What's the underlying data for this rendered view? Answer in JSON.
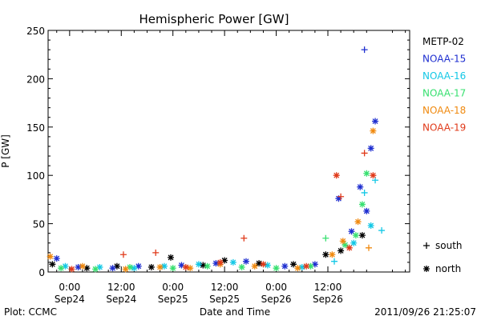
{
  "chart_data": {
    "type": "scatter",
    "title": "Hemispheric Power [GW]",
    "xlabel": "Date and Time",
    "ylabel": "P [GW]",
    "ylim": [
      0,
      250
    ],
    "y_ticks": [
      0,
      50,
      100,
      150,
      200,
      250
    ],
    "xlim_hours": [
      -5,
      79
    ],
    "x_ticks": [
      {
        "hour": 0,
        "time": "0:00",
        "date": "Sep24"
      },
      {
        "hour": 12,
        "time": "12:00",
        "date": "Sep24"
      },
      {
        "hour": 24,
        "time": "0:00",
        "date": "Sep25"
      },
      {
        "hour": 36,
        "time": "12:00",
        "date": "Sep25"
      },
      {
        "hour": 48,
        "time": "0:00",
        "date": "Sep26"
      },
      {
        "hour": 60,
        "time": "12:00",
        "date": "Sep26"
      }
    ],
    "x_tick_unit": "hour",
    "legend_position": "right",
    "marker_legend": [
      {
        "symbol": "+",
        "label": "south"
      },
      {
        "symbol": "*",
        "label": "north"
      }
    ],
    "series": [
      {
        "name": "METP-02",
        "color": "#000000",
        "points": [
          {
            "x": -4.0,
            "y": 8,
            "hemisphere": "north"
          },
          {
            "x": 4.0,
            "y": 4,
            "hemisphere": "north"
          },
          {
            "x": 11.0,
            "y": 6,
            "hemisphere": "north"
          },
          {
            "x": 19.0,
            "y": 5,
            "hemisphere": "north"
          },
          {
            "x": 23.5,
            "y": 15,
            "hemisphere": "north"
          },
          {
            "x": 31.0,
            "y": 7,
            "hemisphere": "north"
          },
          {
            "x": 36.0,
            "y": 12,
            "hemisphere": "north"
          },
          {
            "x": 44.0,
            "y": 9,
            "hemisphere": "north"
          },
          {
            "x": 52.0,
            "y": 8,
            "hemisphere": "north"
          },
          {
            "x": 59.5,
            "y": 18,
            "hemisphere": "north"
          },
          {
            "x": 63.0,
            "y": 22,
            "hemisphere": "north"
          },
          {
            "x": 68.0,
            "y": 38,
            "hemisphere": "north"
          }
        ]
      },
      {
        "name": "NOAA-15",
        "color": "#1f2fd0",
        "points": [
          {
            "x": -3.0,
            "y": 14,
            "hemisphere": "north"
          },
          {
            "x": 2.0,
            "y": 5,
            "hemisphere": "north"
          },
          {
            "x": 10.0,
            "y": 4,
            "hemisphere": "north"
          },
          {
            "x": 16.0,
            "y": 6,
            "hemisphere": "north"
          },
          {
            "x": 26.0,
            "y": 7,
            "hemisphere": "north"
          },
          {
            "x": 34.0,
            "y": 9,
            "hemisphere": "north"
          },
          {
            "x": 41.0,
            "y": 11,
            "hemisphere": "north"
          },
          {
            "x": 50.0,
            "y": 6,
            "hemisphere": "north"
          },
          {
            "x": 57.0,
            "y": 8,
            "hemisphere": "north"
          },
          {
            "x": 62.5,
            "y": 76,
            "hemisphere": "north"
          },
          {
            "x": 65.5,
            "y": 42,
            "hemisphere": "north"
          },
          {
            "x": 67.5,
            "y": 88,
            "hemisphere": "north"
          },
          {
            "x": 68.5,
            "y": 230,
            "hemisphere": "south"
          },
          {
            "x": 69.0,
            "y": 63,
            "hemisphere": "north"
          },
          {
            "x": 70.0,
            "y": 128,
            "hemisphere": "north"
          },
          {
            "x": 71.0,
            "y": 156,
            "hemisphere": "north"
          }
        ]
      },
      {
        "name": "NOAA-16",
        "color": "#14c8e6",
        "points": [
          {
            "x": -1.0,
            "y": 6,
            "hemisphere": "north"
          },
          {
            "x": 7.0,
            "y": 5,
            "hemisphere": "north"
          },
          {
            "x": 15.0,
            "y": 4,
            "hemisphere": "north"
          },
          {
            "x": 22.0,
            "y": 6,
            "hemisphere": "north"
          },
          {
            "x": 30.0,
            "y": 8,
            "hemisphere": "north"
          },
          {
            "x": 38.0,
            "y": 10,
            "hemisphere": "north"
          },
          {
            "x": 46.0,
            "y": 7,
            "hemisphere": "north"
          },
          {
            "x": 54.0,
            "y": 5,
            "hemisphere": "north"
          },
          {
            "x": 61.5,
            "y": 11,
            "hemisphere": "south"
          },
          {
            "x": 66.0,
            "y": 30,
            "hemisphere": "north"
          },
          {
            "x": 68.5,
            "y": 82,
            "hemisphere": "south"
          },
          {
            "x": 70.0,
            "y": 48,
            "hemisphere": "north"
          },
          {
            "x": 71.0,
            "y": 95,
            "hemisphere": "south"
          },
          {
            "x": 72.5,
            "y": 43,
            "hemisphere": "south"
          }
        ]
      },
      {
        "name": "NOAA-17",
        "color": "#38e070",
        "points": [
          {
            "x": -2.0,
            "y": 4,
            "hemisphere": "north"
          },
          {
            "x": 6.0,
            "y": 3,
            "hemisphere": "north"
          },
          {
            "x": 14.0,
            "y": 5,
            "hemisphere": "north"
          },
          {
            "x": 24.0,
            "y": 4,
            "hemisphere": "north"
          },
          {
            "x": 32.0,
            "y": 6,
            "hemisphere": "north"
          },
          {
            "x": 40.0,
            "y": 5,
            "hemisphere": "north"
          },
          {
            "x": 48.0,
            "y": 4,
            "hemisphere": "north"
          },
          {
            "x": 56.0,
            "y": 6,
            "hemisphere": "north"
          },
          {
            "x": 59.5,
            "y": 35,
            "hemisphere": "south"
          },
          {
            "x": 64.0,
            "y": 28,
            "hemisphere": "north"
          },
          {
            "x": 66.5,
            "y": 38,
            "hemisphere": "north"
          },
          {
            "x": 68.0,
            "y": 70,
            "hemisphere": "north"
          },
          {
            "x": 69.0,
            "y": 102,
            "hemisphere": "north"
          }
        ]
      },
      {
        "name": "NOAA-18",
        "color": "#f08a10",
        "points": [
          {
            "x": -4.5,
            "y": 16,
            "hemisphere": "north"
          },
          {
            "x": 3.0,
            "y": 6,
            "hemisphere": "north"
          },
          {
            "x": 13.0,
            "y": 3,
            "hemisphere": "north"
          },
          {
            "x": 21.0,
            "y": 5,
            "hemisphere": "north"
          },
          {
            "x": 28.0,
            "y": 4,
            "hemisphere": "north"
          },
          {
            "x": 35.0,
            "y": 8,
            "hemisphere": "north"
          },
          {
            "x": 43.0,
            "y": 6,
            "hemisphere": "north"
          },
          {
            "x": 53.0,
            "y": 4,
            "hemisphere": "north"
          },
          {
            "x": 61.0,
            "y": 18,
            "hemisphere": "north"
          },
          {
            "x": 63.5,
            "y": 32,
            "hemisphere": "north"
          },
          {
            "x": 67.0,
            "y": 52,
            "hemisphere": "north"
          },
          {
            "x": 69.5,
            "y": 25,
            "hemisphere": "south"
          },
          {
            "x": 70.5,
            "y": 146,
            "hemisphere": "north"
          }
        ]
      },
      {
        "name": "NOAA-19",
        "color": "#e03a1a",
        "points": [
          {
            "x": 0.5,
            "y": 3,
            "hemisphere": "north"
          },
          {
            "x": 12.5,
            "y": 18,
            "hemisphere": "south"
          },
          {
            "x": 20.0,
            "y": 20,
            "hemisphere": "south"
          },
          {
            "x": 27.0,
            "y": 5,
            "hemisphere": "north"
          },
          {
            "x": 35.0,
            "y": 10,
            "hemisphere": "north"
          },
          {
            "x": 40.5,
            "y": 35,
            "hemisphere": "south"
          },
          {
            "x": 45.0,
            "y": 8,
            "hemisphere": "north"
          },
          {
            "x": 55.0,
            "y": 6,
            "hemisphere": "north"
          },
          {
            "x": 62.0,
            "y": 100,
            "hemisphere": "north"
          },
          {
            "x": 63.0,
            "y": 78,
            "hemisphere": "south"
          },
          {
            "x": 65.0,
            "y": 25,
            "hemisphere": "north"
          },
          {
            "x": 68.5,
            "y": 123,
            "hemisphere": "south"
          },
          {
            "x": 70.5,
            "y": 100,
            "hemisphere": "north"
          }
        ]
      }
    ]
  },
  "footer": {
    "plot_credit": "Plot: CCMC",
    "timestamp": "2011/09/26 21:25:07"
  }
}
